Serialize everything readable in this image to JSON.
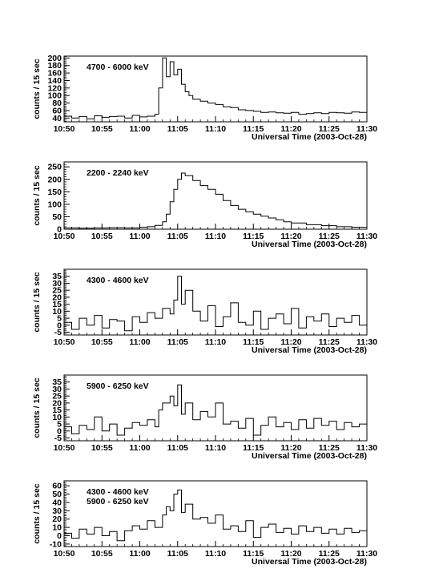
{
  "chart_data": [
    {
      "type": "line",
      "band_labels": [
        "4700 - 6000 keV"
      ],
      "xlabel": "Universal Time (2003-Oct-28)",
      "ylabel": "counts / 15 sec",
      "ylim": [
        30,
        205
      ],
      "yticks": [
        40,
        60,
        80,
        100,
        120,
        140,
        160,
        180,
        200
      ],
      "series": [
        {
          "x": [
            "10:50",
            "10:51",
            "10:52",
            "10:53",
            "10:54",
            "10:55",
            "10:56",
            "10:57",
            "10:58",
            "10:59",
            "11:00",
            "11:01",
            "11:02",
            "11:02:30",
            "11:03",
            "11:03:30",
            "11:04",
            "11:04:30",
            "11:05",
            "11:05:30",
            "11:06",
            "11:06:30",
            "11:07",
            "11:08",
            "11:09",
            "11:10",
            "11:11",
            "11:12",
            "11:13",
            "11:14",
            "11:15",
            "11:16",
            "11:17",
            "11:18",
            "11:19",
            "11:20",
            "11:21",
            "11:22",
            "11:23",
            "11:24",
            "11:25",
            "11:26",
            "11:27",
            "11:28",
            "11:29",
            "11:30"
          ],
          "values": [
            45,
            40,
            44,
            38,
            46,
            42,
            44,
            45,
            40,
            47,
            43,
            45,
            50,
            120,
            200,
            150,
            190,
            155,
            170,
            130,
            110,
            100,
            90,
            85,
            80,
            76,
            70,
            68,
            62,
            60,
            58,
            55,
            56,
            54,
            53,
            55,
            50,
            52,
            54,
            52,
            55,
            54,
            53,
            56,
            55,
            55
          ]
        }
      ]
    },
    {
      "type": "line",
      "band_labels": [
        "2200 - 2240 keV"
      ],
      "xlabel": "Universal Time (2003-Oct-28)",
      "ylabel": "counts / 15 sec",
      "ylim": [
        0,
        270
      ],
      "yticks": [
        0,
        50,
        100,
        150,
        200,
        250
      ],
      "series": [
        {
          "x": [
            "10:50",
            "10:52",
            "10:54",
            "10:56",
            "10:58",
            "11:00",
            "11:01",
            "11:02",
            "11:03",
            "11:03:30",
            "11:04",
            "11:04:30",
            "11:05",
            "11:05:30",
            "11:06",
            "11:07",
            "11:08",
            "11:09",
            "11:10",
            "11:11",
            "11:12",
            "11:13",
            "11:14",
            "11:15",
            "11:16",
            "11:17",
            "11:18",
            "11:19",
            "11:20",
            "11:22",
            "11:24",
            "11:26",
            "11:28",
            "11:30"
          ],
          "values": [
            5,
            4,
            5,
            6,
            5,
            8,
            10,
            15,
            30,
            60,
            110,
            160,
            200,
            225,
            215,
            195,
            175,
            160,
            140,
            115,
            95,
            80,
            70,
            60,
            52,
            45,
            38,
            30,
            25,
            18,
            14,
            10,
            8,
            6
          ]
        }
      ]
    },
    {
      "type": "line",
      "band_labels": [
        "4300 - 4600 keV"
      ],
      "xlabel": "Universal Time (2003-Oct-28)",
      "ylabel": "counts / 15 sec",
      "ylim": [
        -7,
        40
      ],
      "yticks": [
        -5,
        0,
        5,
        10,
        15,
        20,
        25,
        30,
        35
      ],
      "series": [
        {
          "x": [
            "10:50",
            "10:51",
            "10:52",
            "10:53",
            "10:54",
            "10:55",
            "10:56",
            "10:57",
            "10:58",
            "10:59",
            "11:00",
            "11:01",
            "11:02",
            "11:03",
            "11:04",
            "11:04:30",
            "11:05",
            "11:05:30",
            "11:06",
            "11:07",
            "11:08",
            "11:09",
            "11:10",
            "11:11",
            "11:12",
            "11:13",
            "11:14",
            "11:15",
            "11:16",
            "11:17",
            "11:18",
            "11:19",
            "11:20",
            "11:21",
            "11:22",
            "11:23",
            "11:24",
            "11:25",
            "11:26",
            "11:27",
            "11:28",
            "11:29",
            "11:30"
          ],
          "values": [
            2,
            -3,
            5,
            0,
            7,
            -2,
            4,
            3,
            -4,
            6,
            2,
            9,
            5,
            12,
            8,
            18,
            35,
            15,
            25,
            10,
            3,
            14,
            -1,
            6,
            16,
            2,
            0,
            10,
            -3,
            5,
            8,
            1,
            12,
            -2,
            6,
            3,
            8,
            -1,
            5,
            2,
            7,
            0,
            4
          ]
        }
      ]
    },
    {
      "type": "line",
      "band_labels": [
        "5900 - 6250 keV"
      ],
      "xlabel": "Universal Time (2003-Oct-28)",
      "ylabel": "counts / 15 sec",
      "ylim": [
        -7,
        40
      ],
      "yticks": [
        -5,
        0,
        5,
        10,
        15,
        20,
        25,
        30,
        35
      ],
      "series": [
        {
          "x": [
            "10:50",
            "10:51",
            "10:52",
            "10:53",
            "10:54",
            "10:55",
            "10:56",
            "10:57",
            "10:58",
            "10:59",
            "11:00",
            "11:01",
            "11:02",
            "11:02:30",
            "11:03",
            "11:04",
            "11:04:30",
            "11:05",
            "11:05:30",
            "11:06",
            "11:07",
            "11:08",
            "11:09",
            "11:10",
            "11:11",
            "11:12",
            "11:13",
            "11:14",
            "11:15",
            "11:16",
            "11:17",
            "11:18",
            "11:19",
            "11:20",
            "11:21",
            "11:22",
            "11:23",
            "11:24",
            "11:25",
            "11:26",
            "11:27",
            "11:28",
            "11:29",
            "11:30"
          ],
          "values": [
            3,
            -2,
            4,
            1,
            10,
            0,
            5,
            -3,
            2,
            6,
            4,
            8,
            3,
            15,
            20,
            25,
            18,
            33,
            12,
            20,
            8,
            14,
            10,
            20,
            5,
            7,
            2,
            9,
            -3,
            4,
            10,
            3,
            6,
            1,
            8,
            2,
            9,
            4,
            7,
            1,
            6,
            3,
            5,
            2
          ]
        }
      ]
    },
    {
      "type": "line",
      "band_labels": [
        "4300 - 4600 keV",
        "5900 - 6250 keV"
      ],
      "xlabel": "Universal Time (2003-Oct-28)",
      "ylabel": "counts / 15 sec",
      "ylim": [
        -13,
        66
      ],
      "yticks": [
        -10,
        0,
        10,
        20,
        30,
        40,
        50,
        60
      ],
      "series": [
        {
          "x": [
            "10:50",
            "10:51",
            "10:52",
            "10:53",
            "10:54",
            "10:55",
            "10:56",
            "10:57",
            "10:58",
            "10:59",
            "11:00",
            "11:01",
            "11:02",
            "11:03",
            "11:03:30",
            "11:04",
            "11:04:30",
            "11:05",
            "11:05:30",
            "11:06",
            "11:07",
            "11:08",
            "11:09",
            "11:10",
            "11:11",
            "11:12",
            "11:13",
            "11:14",
            "11:15",
            "11:16",
            "11:17",
            "11:18",
            "11:19",
            "11:20",
            "11:21",
            "11:22",
            "11:23",
            "11:24",
            "11:25",
            "11:26",
            "11:27",
            "11:28",
            "11:29",
            "11:30"
          ],
          "values": [
            3,
            -3,
            8,
            2,
            10,
            0,
            5,
            -6,
            6,
            12,
            8,
            18,
            10,
            25,
            35,
            30,
            50,
            55,
            28,
            38,
            20,
            22,
            15,
            25,
            8,
            12,
            5,
            18,
            -2,
            10,
            14,
            4,
            9,
            2,
            12,
            5,
            10,
            3,
            8,
            2,
            9,
            4,
            6,
            3
          ]
        }
      ]
    }
  ],
  "x_axis": {
    "range": [
      "10:50",
      "11:30"
    ],
    "tick_labels": [
      "10:50",
      "10:55",
      "11:00",
      "11:05",
      "11:10",
      "11:15",
      "11:20",
      "11:25",
      "11:30"
    ]
  }
}
